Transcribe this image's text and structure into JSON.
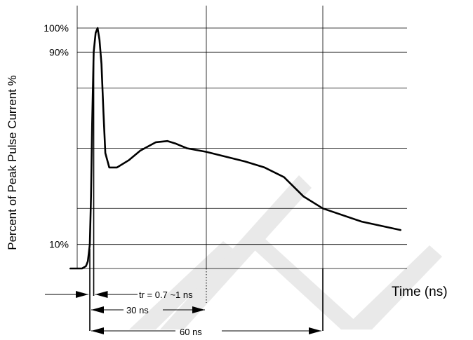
{
  "chart_data": {
    "type": "line",
    "title": "",
    "ylabel": "Percent of Peak Pulse Current %",
    "xlabel": "Time (ns)",
    "y_tick_labels": [
      {
        "label": "100%",
        "value": 100
      },
      {
        "label": "90%",
        "value": 90
      },
      {
        "label": "10%",
        "value": 10
      }
    ],
    "ylim": [
      0,
      100
    ],
    "xlim": [
      -5,
      80
    ],
    "grid": true,
    "x_gridlines": [
      0,
      30,
      60
    ],
    "y_gridlines": [
      0,
      10,
      25,
      50,
      75,
      90,
      100
    ],
    "series": [
      {
        "x": [
          -5,
          -2,
          -1,
          -0.5,
          0,
          0.3,
          0.6,
          1.0,
          1.5,
          2.0,
          2.5,
          3,
          3.5,
          4,
          5,
          7,
          10,
          13,
          17,
          20,
          22,
          25,
          30,
          35,
          40,
          45,
          50,
          55,
          60,
          70,
          80
        ],
        "y": [
          0,
          0,
          1,
          3,
          10,
          30,
          60,
          90,
          98,
          100,
          95,
          85,
          65,
          48,
          42,
          42,
          45,
          49,
          52.5,
          53,
          52,
          50,
          48.5,
          46.5,
          44.5,
          42,
          38,
          30,
          25,
          19.5,
          16
        ]
      }
    ],
    "annotations": [
      {
        "id": "tr",
        "text": "tr = 0.7 ~1 ns"
      },
      {
        "id": "t30",
        "text": "30 ns"
      },
      {
        "id": "t60",
        "text": "60 ns"
      }
    ]
  }
}
